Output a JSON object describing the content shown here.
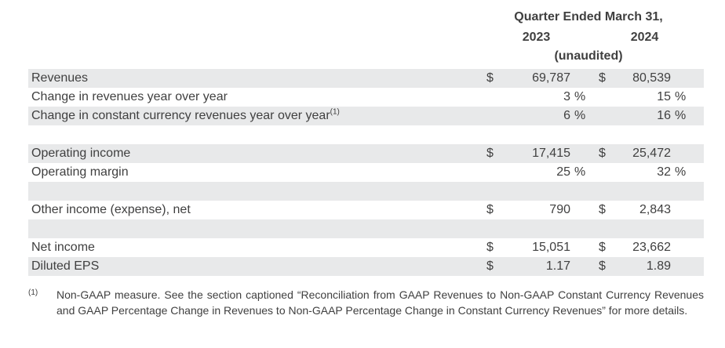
{
  "header": {
    "title": "Quarter Ended March 31,",
    "col1": "2023",
    "col2": "2024",
    "note": "(unaudited)"
  },
  "table": {
    "rows": [
      {
        "label": "Revenues",
        "sup": "",
        "d1": "$",
        "v1": "69,787",
        "p1": "",
        "d2": "$",
        "v2": "80,539",
        "p2": ""
      },
      {
        "label": "Change in revenues year over year",
        "sup": "",
        "d1": "",
        "v1": "3",
        "p1": "%",
        "d2": "",
        "v2": "15",
        "p2": "%"
      },
      {
        "label": "Change in constant currency revenues year over year",
        "sup": "(1)",
        "d1": "",
        "v1": "6",
        "p1": "%",
        "d2": "",
        "v2": "16",
        "p2": "%"
      },
      {
        "label": "",
        "sup": "",
        "d1": "",
        "v1": "",
        "p1": "",
        "d2": "",
        "v2": "",
        "p2": ""
      },
      {
        "label": "Operating income",
        "sup": "",
        "d1": "$",
        "v1": "17,415",
        "p1": "",
        "d2": "$",
        "v2": "25,472",
        "p2": ""
      },
      {
        "label": "Operating margin",
        "sup": "",
        "d1": "",
        "v1": "25",
        "p1": "%",
        "d2": "",
        "v2": "32",
        "p2": "%"
      },
      {
        "label": "",
        "sup": "",
        "d1": "",
        "v1": "",
        "p1": "",
        "d2": "",
        "v2": "",
        "p2": ""
      },
      {
        "label": "Other income (expense), net",
        "sup": "",
        "d1": "$",
        "v1": "790",
        "p1": "",
        "d2": "$",
        "v2": "2,843",
        "p2": ""
      },
      {
        "label": "",
        "sup": "",
        "d1": "",
        "v1": "",
        "p1": "",
        "d2": "",
        "v2": "",
        "p2": ""
      },
      {
        "label": "Net income",
        "sup": "",
        "d1": "$",
        "v1": "15,051",
        "p1": "",
        "d2": "$",
        "v2": "23,662",
        "p2": ""
      },
      {
        "label": "Diluted EPS",
        "sup": "",
        "d1": "$",
        "v1": "1.17",
        "p1": "",
        "d2": "$",
        "v2": "1.89",
        "p2": ""
      }
    ]
  },
  "footnote": {
    "marker": "(1)",
    "text": "Non-GAAP measure. See the section captioned “Reconciliation from GAAP Revenues to Non-GAAP Constant Currency Revenues and GAAP Percentage Change in Revenues to Non-GAAP Percentage Change in Constant Currency Revenues” for more details."
  },
  "colors": {
    "row_shade": "#e8e9ea",
    "text_color": "#404040"
  }
}
